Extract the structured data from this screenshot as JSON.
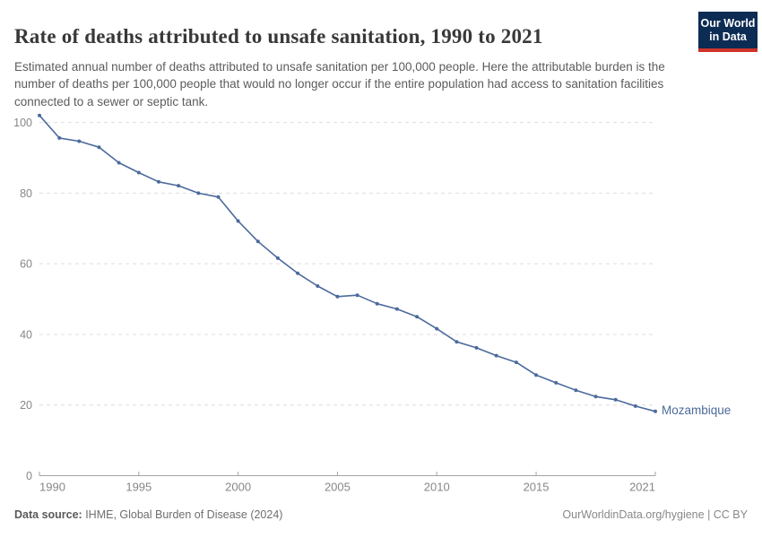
{
  "header": {
    "title": "Rate of deaths attributed to unsafe sanitation, 1990 to 2021",
    "subtitle": "Estimated annual number of deaths attributed to unsafe sanitation per 100,000 people. Here the attributable burden is the number of deaths per 100,000 people that would no longer occur if the entire population had access to sanitation facilities connected to a sewer or septic tank.",
    "logo": {
      "line1": "Our World",
      "line2": "in Data"
    }
  },
  "footer": {
    "source_label": "Data source:",
    "source_text": " IHME, Global Burden of Disease (2024)",
    "credit": "OurWorldinData.org/hygiene | CC BY"
  },
  "colors": {
    "line": "#4C6A9C",
    "logo_bg": "#0D2C54",
    "logo_stripe": "#CE342B",
    "grid": "#DEDEDE",
    "axis": "#A3A3A3",
    "tick_text": "#878787"
  },
  "chart_data": {
    "type": "line",
    "title": "Rate of deaths attributed to unsafe sanitation, 1990 to 2021",
    "entity": "Mozambique",
    "x": [
      1990,
      1991,
      1992,
      1993,
      1994,
      1995,
      1996,
      1997,
      1998,
      1999,
      2000,
      2001,
      2002,
      2003,
      2004,
      2005,
      2006,
      2007,
      2008,
      2009,
      2010,
      2011,
      2012,
      2013,
      2014,
      2015,
      2016,
      2017,
      2018,
      2019,
      2020,
      2021
    ],
    "series": [
      {
        "name": "Mozambique",
        "values": [
          102.0,
          95.6,
          94.7,
          93.0,
          88.6,
          85.8,
          83.2,
          82.1,
          80.0,
          78.9,
          72.1,
          66.3,
          61.6,
          57.3,
          53.7,
          50.7,
          51.1,
          48.7,
          47.2,
          45.0,
          41.6,
          37.9,
          36.2,
          34.0,
          32.1,
          28.5,
          26.3,
          24.2,
          22.4,
          21.5,
          19.7,
          18.2
        ]
      }
    ],
    "x_ticks": [
      1990,
      1995,
      2000,
      2005,
      2010,
      2015,
      2021
    ],
    "y_ticks": [
      0,
      20,
      40,
      60,
      80,
      100
    ],
    "ylim": [
      0,
      100
    ],
    "xlabel": "",
    "ylabel": "",
    "grid": true,
    "legend": "end-of-line-label"
  }
}
